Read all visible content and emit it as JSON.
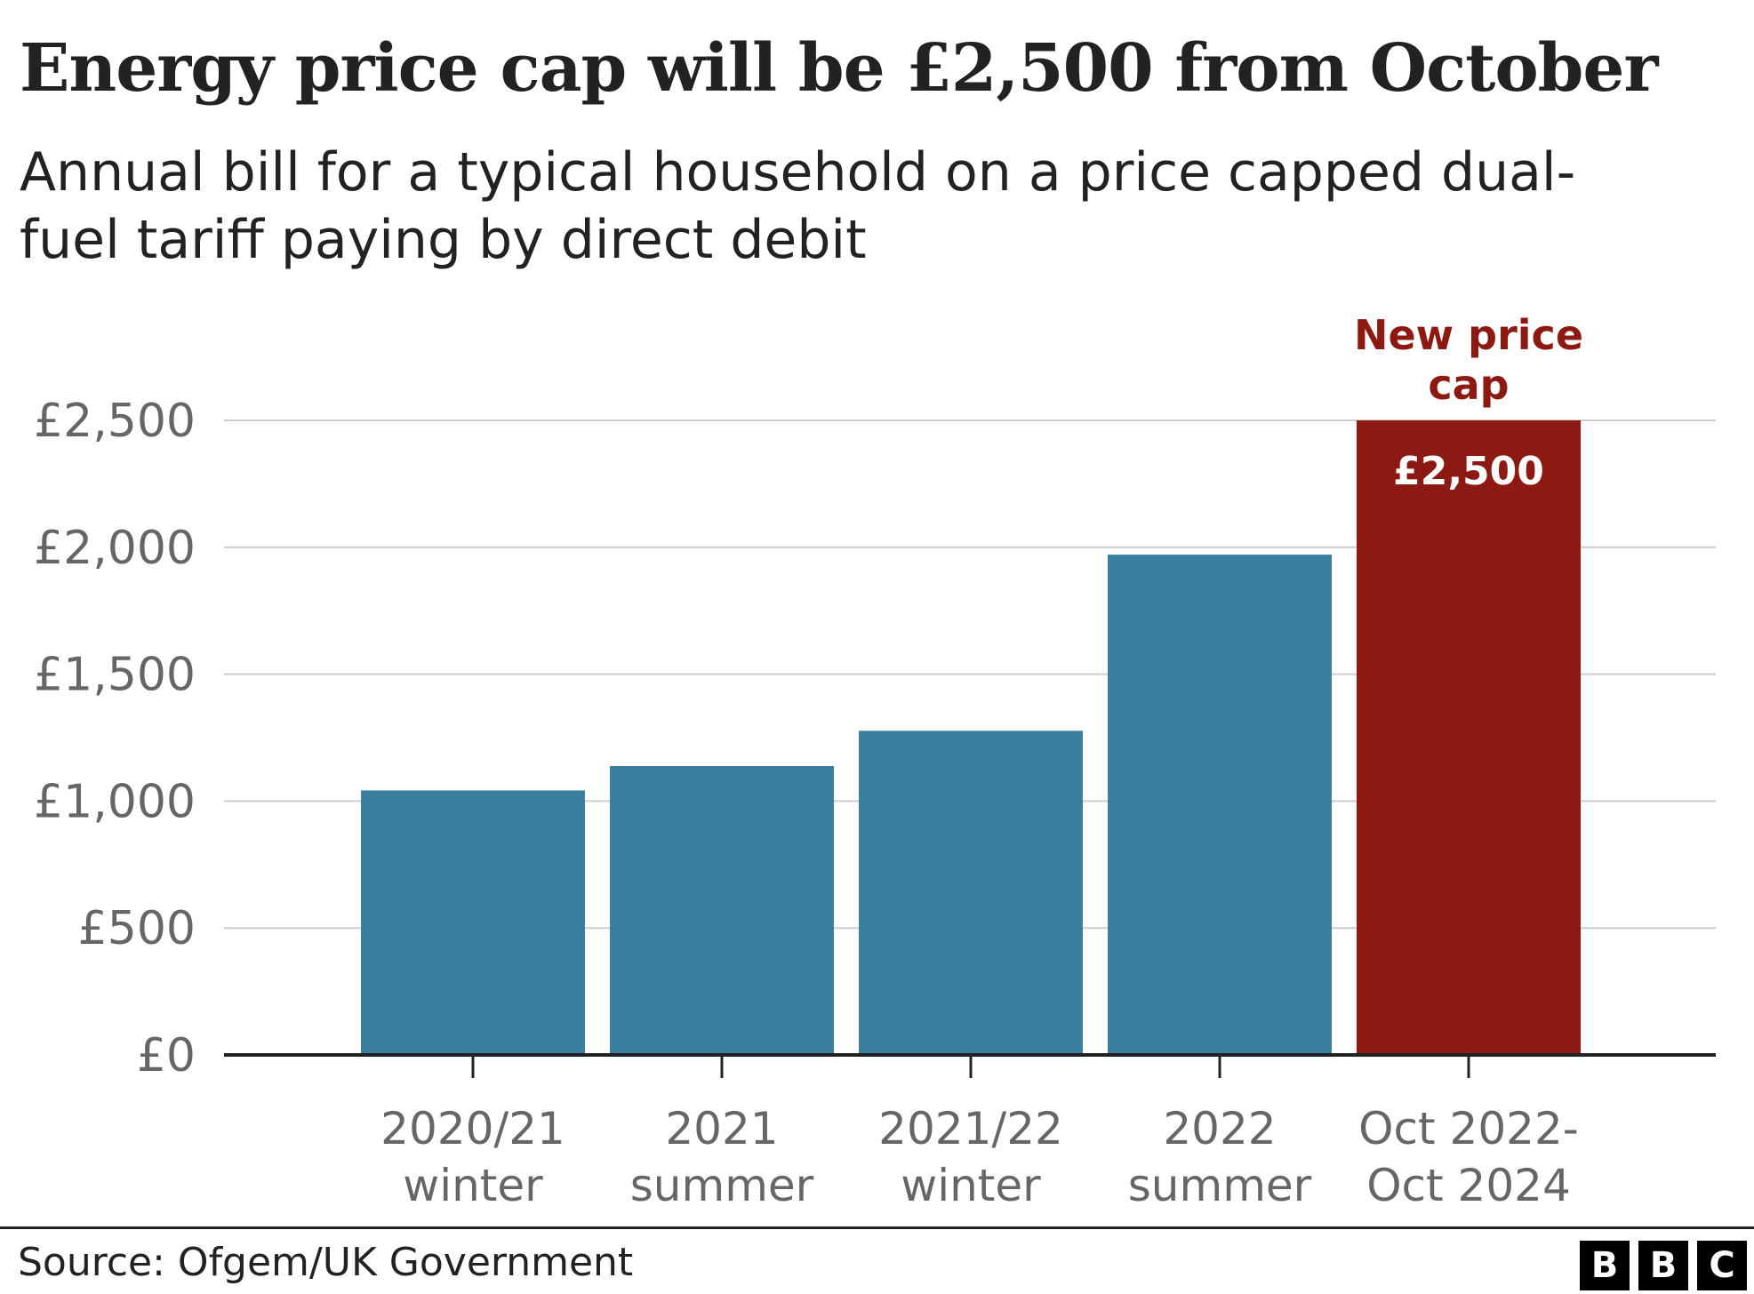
{
  "chart_data": {
    "type": "bar",
    "title": "Energy price cap will be £2,500 from October",
    "subtitle": "Annual bill for a typical household on a price capped dual-fuel tariff paying by direct debit",
    "categories": [
      [
        "2020/21",
        "winter"
      ],
      [
        "2021",
        "summer"
      ],
      [
        "2021/22",
        "winter"
      ],
      [
        "2022",
        "summer"
      ],
      [
        "Oct 2022-",
        "Oct 2024"
      ]
    ],
    "values": [
      1042,
      1138,
      1277,
      1971,
      2500
    ],
    "bar_colors": [
      "#3a7f9f",
      "#3a7f9f",
      "#3a7f9f",
      "#3a7f9f",
      "#8d1a12"
    ],
    "y_ticks": [
      {
        "value": 0,
        "label": "£0"
      },
      {
        "value": 500,
        "label": "£500"
      },
      {
        "value": 1000,
        "label": "£1,000"
      },
      {
        "value": 1500,
        "label": "£1,500"
      },
      {
        "value": 2000,
        "label": "£2,000"
      },
      {
        "value": 2500,
        "label": "£2,500"
      }
    ],
    "ylim": [
      0,
      2500
    ],
    "grid": true,
    "highlight": {
      "index": 4,
      "annotation": [
        "New price",
        "cap"
      ],
      "data_label": "£2,500",
      "color": "#8d1a12"
    },
    "xlabel": "",
    "ylabel": ""
  },
  "footer": {
    "source": "Source: Ofgem/UK Government",
    "logo_letters": [
      "B",
      "B",
      "C"
    ]
  },
  "colors": {
    "bar": "#3a7f9f",
    "highlight": "#8d1a12",
    "grid": "#cccccc",
    "axis": "#222222",
    "tick_text": "#666666"
  }
}
